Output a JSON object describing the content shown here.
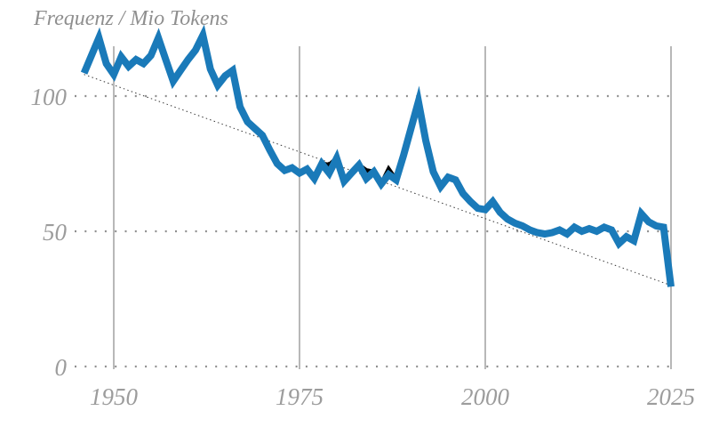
{
  "chart_data": {
    "type": "line",
    "title": "Frequenz / Mio Tokens",
    "xlabel": "",
    "ylabel": "Frequenz / Mio Tokens",
    "xlim": [
      1946,
      2025
    ],
    "ylim": [
      0,
      125
    ],
    "x_ticks": [
      1950,
      1975,
      2000,
      2025
    ],
    "xtick_labels": [
      "1950",
      "1975",
      "2000",
      "2025"
    ],
    "y_ticks": [
      0,
      50,
      100
    ],
    "ytick_labels": [
      "0",
      "50",
      "100"
    ],
    "grid": {
      "vertical": "solid",
      "horizontal": "dotted"
    },
    "legend": "none",
    "series": [
      {
        "name": "frequency-main",
        "color": "#1a7ab9",
        "x": [
          1946,
          1947,
          1948,
          1949,
          1950,
          1951,
          1952,
          1953,
          1954,
          1955,
          1956,
          1957,
          1958,
          1959,
          1960,
          1961,
          1962,
          1963,
          1964,
          1965,
          1966,
          1967,
          1968,
          1969,
          1970,
          1971,
          1972,
          1973,
          1974,
          1975,
          1976,
          1977,
          1978,
          1979,
          1980,
          1981,
          1982,
          1983,
          1984,
          1985,
          1986,
          1987,
          1988,
          1989,
          1990,
          1991,
          1992,
          1993,
          1994,
          1995,
          1996,
          1997,
          1998,
          1999,
          2000,
          2001,
          2002,
          2003,
          2004,
          2005,
          2006,
          2007,
          2008,
          2009,
          2010,
          2011,
          2012,
          2013,
          2014,
          2015,
          2016,
          2017,
          2018,
          2019,
          2020,
          2021,
          2022,
          2023,
          2024,
          2025
        ],
        "values": [
          108.5,
          115,
          121.5,
          112,
          108,
          114.5,
          111,
          113.5,
          112,
          115,
          121.5,
          113.5,
          105.5,
          109.5,
          113.5,
          117,
          122.5,
          110,
          104,
          107.5,
          109.5,
          96,
          90.5,
          88,
          85.5,
          80,
          75,
          72.5,
          73.5,
          71.5,
          73,
          69.5,
          75,
          71.5,
          77,
          68.5,
          71.5,
          74.5,
          69.5,
          72,
          67.5,
          71,
          69,
          78,
          88,
          98,
          83.5,
          72,
          66.5,
          70,
          69,
          64,
          61,
          58.5,
          58,
          61,
          57,
          54.5,
          53,
          52,
          50.5,
          49.5,
          49,
          49.5,
          50.5,
          49,
          51.5,
          50,
          51,
          50,
          51.5,
          50.5,
          45.5,
          48,
          46.5,
          56.5,
          53.5,
          52,
          51.5,
          29.5
        ]
      },
      {
        "name": "frequency-secondary",
        "color": "#000000",
        "x": [
          1977,
          1978,
          1979,
          1980,
          1981,
          1982,
          1983,
          1984,
          1985,
          1986,
          1987,
          1988,
          1989
        ],
        "values": [
          69.5,
          75,
          74.5,
          77,
          68.5,
          71.5,
          74.5,
          72.5,
          72,
          67.5,
          73,
          69,
          78
        ]
      }
    ],
    "trend": {
      "name": "trend-line",
      "style": "dotted",
      "color": "#3a3a3a",
      "x": [
        1946,
        2025
      ],
      "values": [
        108,
        30
      ]
    }
  },
  "colors": {
    "background": "#ffffff",
    "main_line": "#1a7ab9",
    "secondary_line": "#000000",
    "vertical_grid": "#ababab",
    "dotted_grid": "#8f8f8f",
    "trend_line": "#3a3a3a",
    "label_text": "#9c9c9c",
    "title_text": "#8f8f8f"
  }
}
